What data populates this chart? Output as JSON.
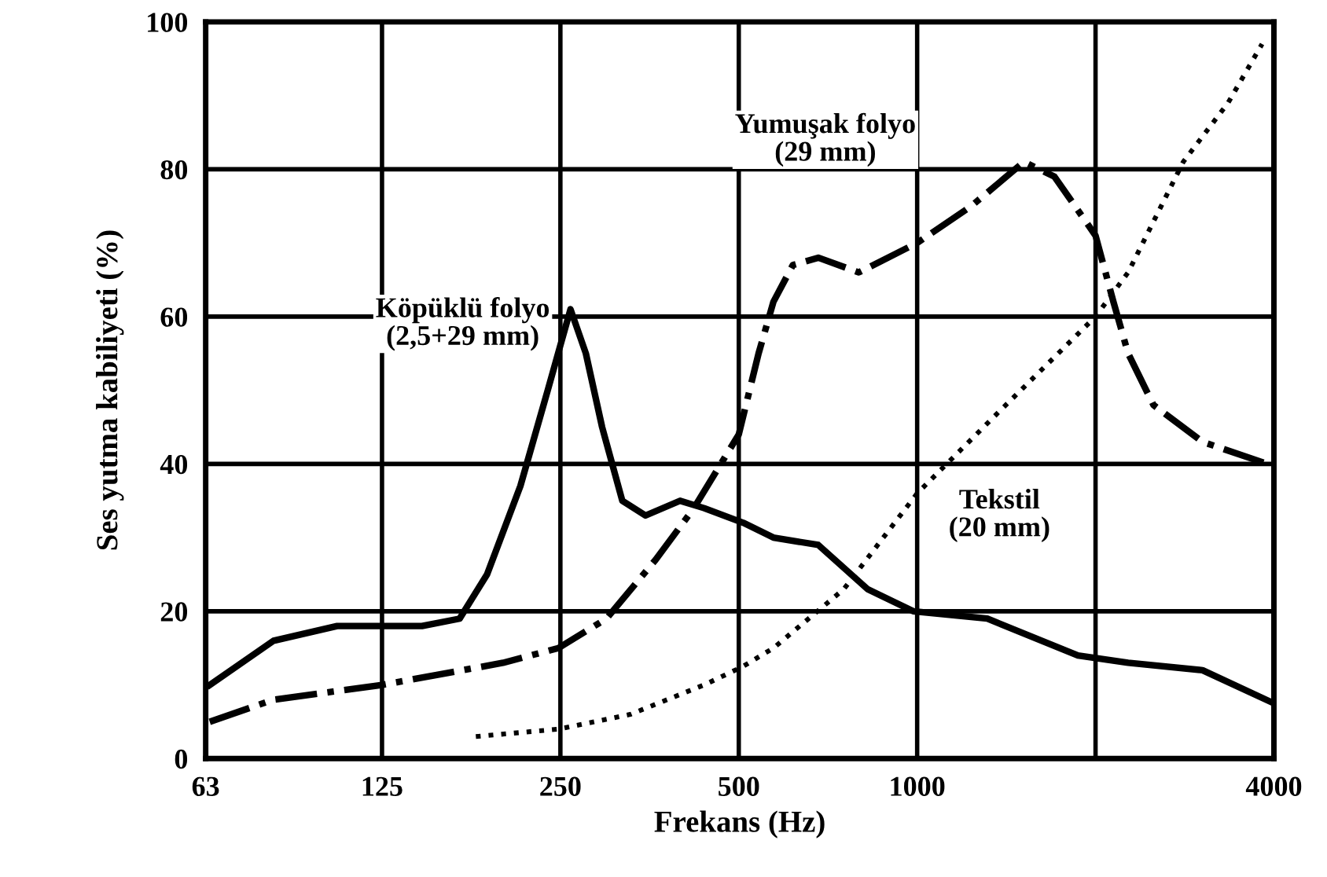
{
  "chart_data": {
    "type": "line",
    "xlabel": "Frekans (Hz)",
    "ylabel": "Ses yutma kabiliyeti (%)",
    "log": "x",
    "xlim": [
      63,
      4000
    ],
    "xticks": [
      63,
      125,
      250,
      500,
      1000,
      {
        "value": 2000,
        "label": null
      },
      4000
    ],
    "ylim": [
      0,
      100
    ],
    "yticks": [
      0,
      20,
      40,
      60,
      80,
      100
    ],
    "grid": true,
    "legend": false,
    "marker": "none",
    "series": [
      {
        "name": "Köpüklü folyo\n(2,5+29 mm)",
        "color": "#000000",
        "line_style": "solid",
        "x": [
          64,
          82,
          105,
          125,
          146,
          169,
          188,
          214,
          238,
          260,
          276,
          294,
          318,
          348,
          398,
          437,
          509,
          572,
          681,
          825,
          985,
          1313,
          1868,
          2270,
          3031,
          4000
        ],
        "values": [
          10,
          16,
          18,
          18,
          18,
          19,
          25,
          37,
          50,
          61,
          55,
          45,
          35,
          33,
          35,
          34,
          32,
          30,
          29,
          23,
          20,
          19,
          14,
          13,
          12,
          7.5
        ]
      },
      {
        "name": "Yumuşak folyo\n(29 mm)",
        "color": "#000000",
        "line_style": "dashdot",
        "x": [
          64,
          82,
          125,
          200,
          248,
          299,
          362,
          420,
          500,
          540,
          572,
          617,
          681,
          797,
          1000,
          1234,
          1514,
          1705,
          2000,
          2144,
          2270,
          2505,
          3031,
          3900
        ],
        "values": [
          5,
          8,
          10,
          13,
          15,
          19,
          27,
          34,
          44,
          55,
          62,
          67,
          68,
          66,
          70,
          75,
          81,
          79,
          71,
          62,
          55,
          48,
          43,
          40
        ]
      },
      {
        "name": "Tekstil\n(20 mm)",
        "color": "#000000",
        "line_style": "dotted",
        "x": [
          180,
          248,
          328,
          437,
          508,
          572,
          752,
          1000,
          1371,
          2000,
          2270,
          2812,
          3346,
          3820
        ],
        "values": [
          3,
          4,
          6,
          10,
          12.5,
          15,
          23,
          36,
          47,
          60,
          66,
          81,
          89,
          97
        ]
      }
    ]
  }
}
